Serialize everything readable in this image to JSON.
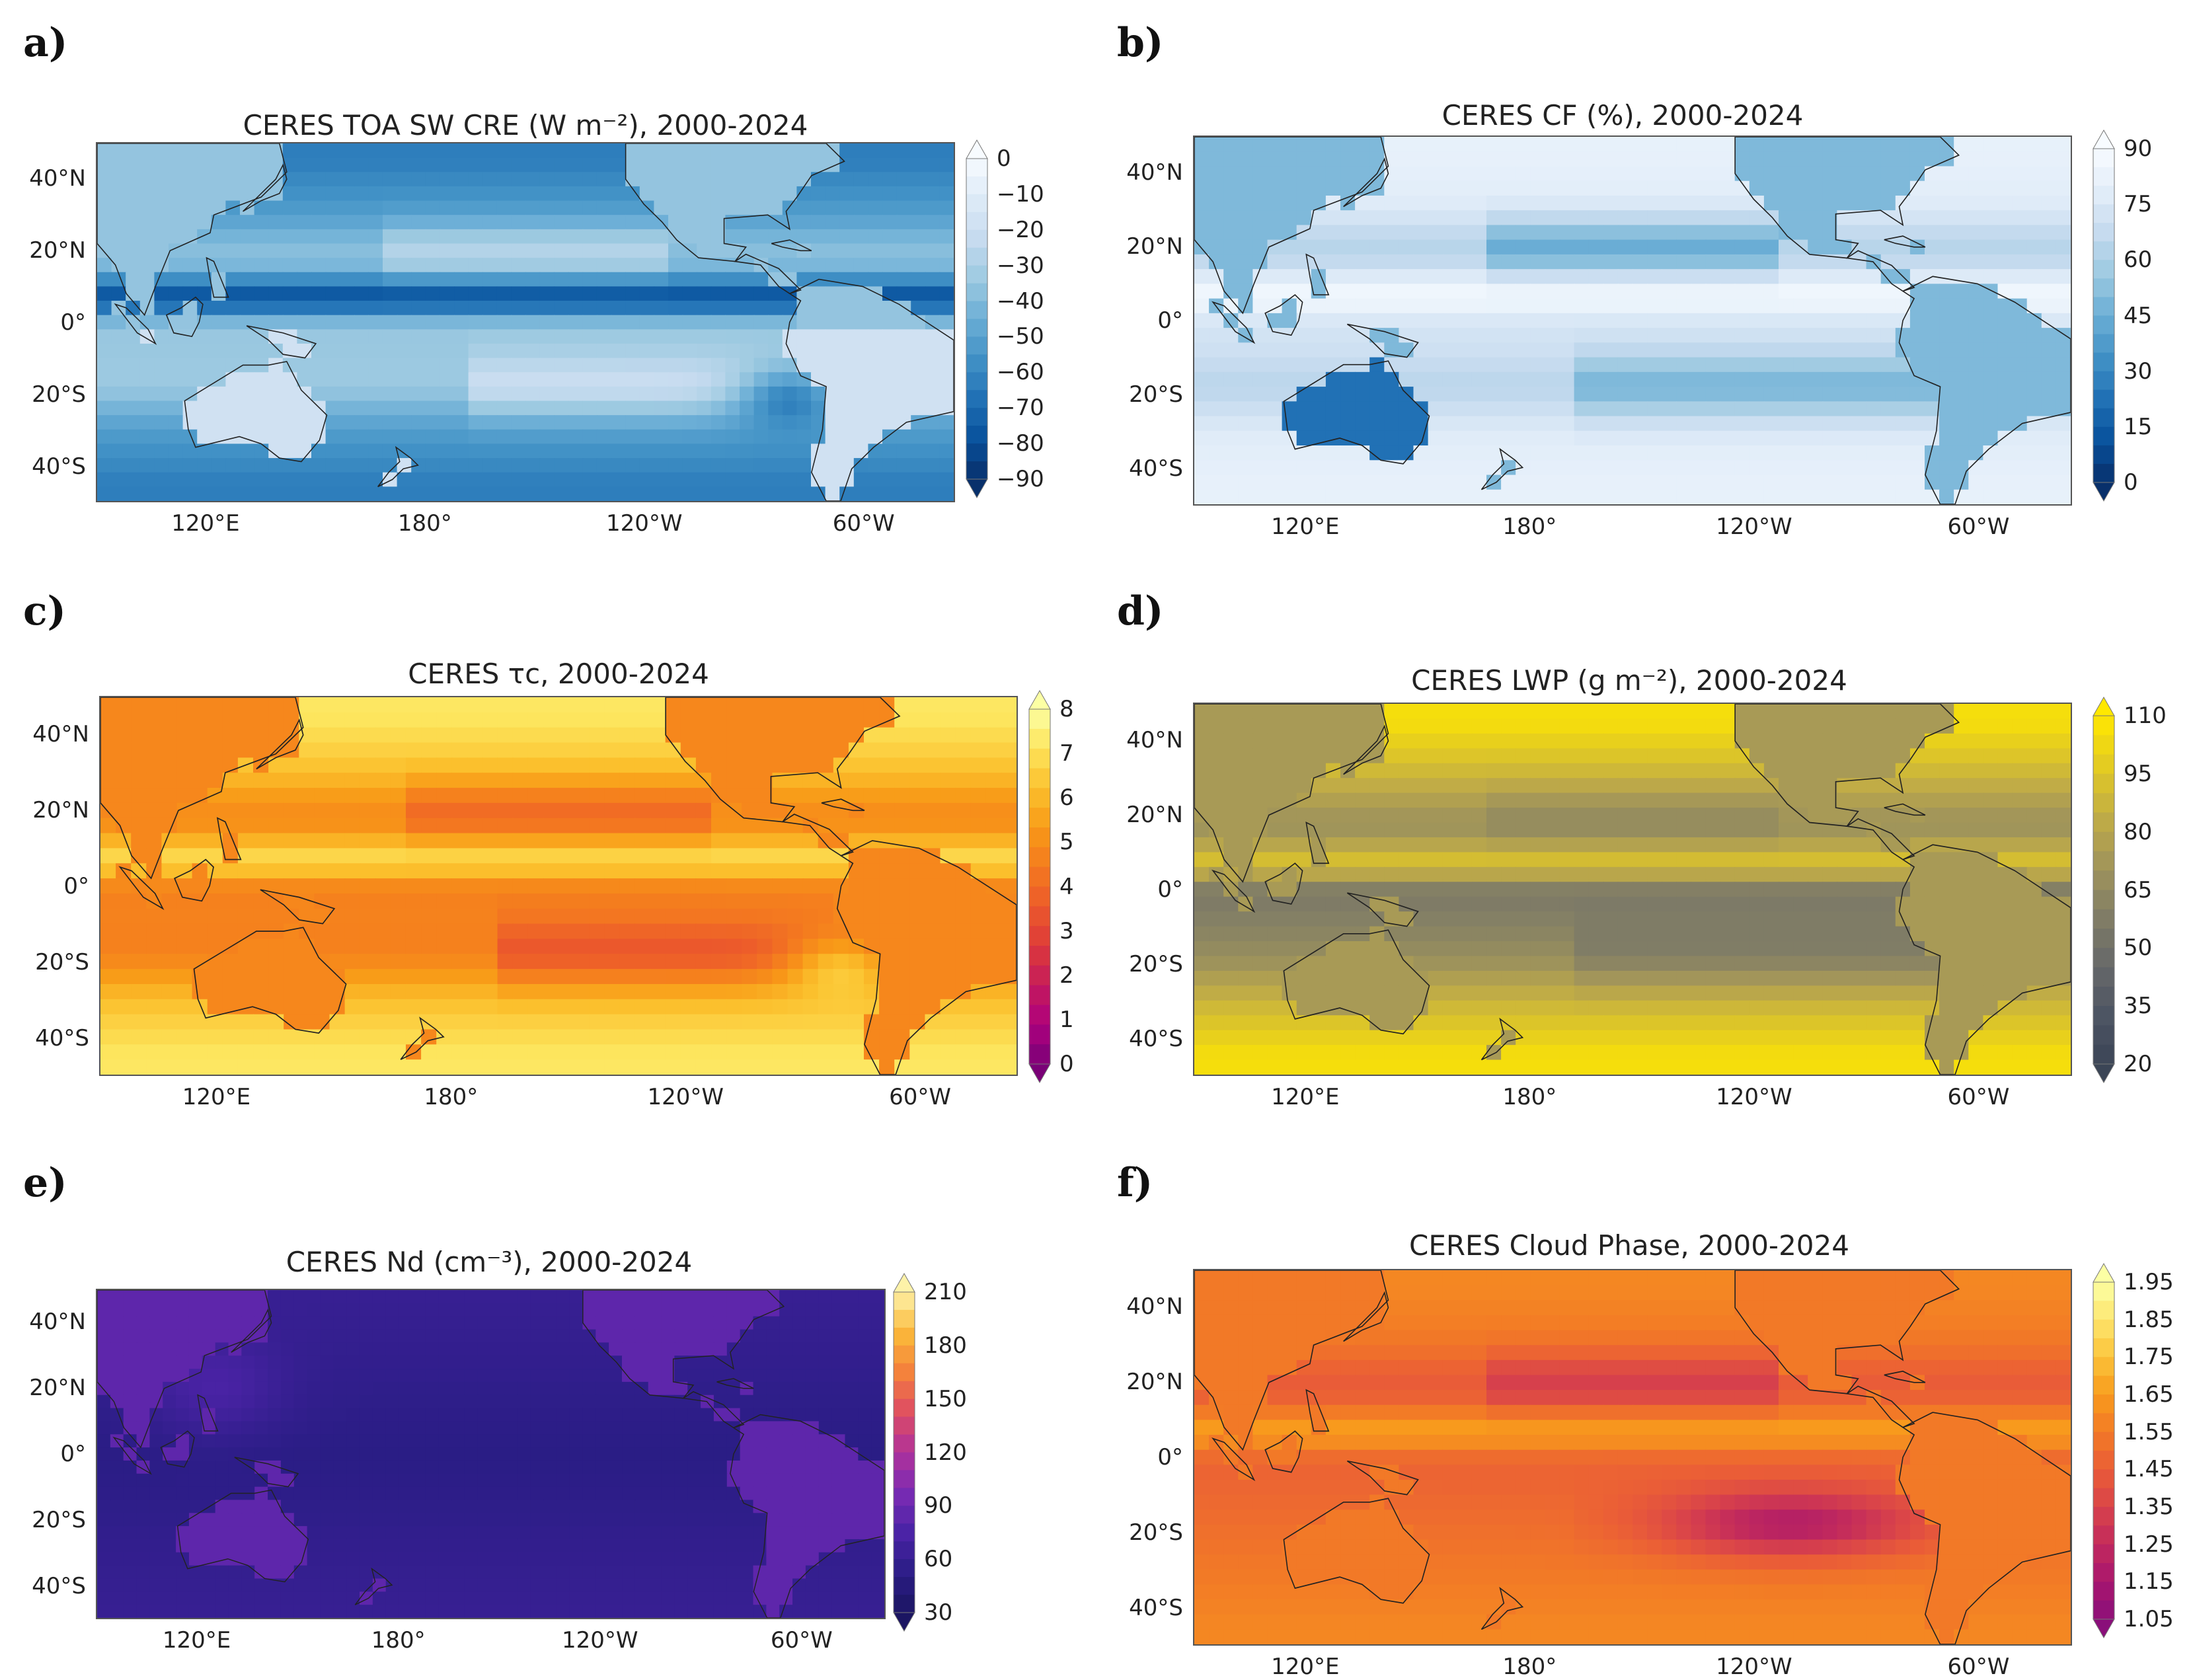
{
  "panels": [
    {
      "label": "a)",
      "title": "CERES TOA SW CRE (W m⁻²), 2000-2024",
      "ticks": [
        "0",
        "−10",
        "−20",
        "−30",
        "−40",
        "−50",
        "−60",
        "−70",
        "−80",
        "−90"
      ],
      "palette": "blues_r",
      "colors": [
        "#08306b",
        "#f7fbff"
      ]
    },
    {
      "label": "b)",
      "title": "CERES CF (%), 2000-2024",
      "ticks": [
        "90",
        "75",
        "60",
        "45",
        "30",
        "15",
        "0"
      ],
      "palette": "blues_cf",
      "colors": [
        "#08306b",
        "#f7fbff"
      ]
    },
    {
      "label": "c)",
      "title": "CERES τc, 2000-2024",
      "ticks": [
        "8",
        "7",
        "6",
        "5",
        "4",
        "3",
        "2",
        "1",
        "0"
      ],
      "palette": "inferno_like",
      "colors": [
        "#7a0177",
        "#fcffa4"
      ]
    },
    {
      "label": "d)",
      "title": "CERES LWP (g m⁻²), 2000-2024",
      "ticks": [
        "110",
        "95",
        "80",
        "65",
        "50",
        "35",
        "20"
      ],
      "palette": "cividis",
      "colors": [
        "#3b4556",
        "#ffe800"
      ]
    },
    {
      "label": "e)",
      "title": "CERES Nd (cm⁻³), 2000-2024",
      "ticks": [
        "210",
        "180",
        "150",
        "120",
        "90",
        "60",
        "30"
      ],
      "palette": "plasma_dark",
      "colors": [
        "#1b1562",
        "#fdf2a8"
      ]
    },
    {
      "label": "f)",
      "title": "CERES Cloud Phase, 2000-2024",
      "ticks": [
        "1.95",
        "1.85",
        "1.75",
        "1.65",
        "1.55",
        "1.45",
        "1.35",
        "1.25",
        "1.15",
        "1.05"
      ],
      "palette": "inferno_phase",
      "colors": [
        "#8a0f7a",
        "#fcffa4"
      ]
    }
  ],
  "axes": {
    "lat_labels": [
      "40°N",
      "20°N",
      "0°",
      "20°S",
      "40°S"
    ],
    "lon_labels": [
      "120°E",
      "180°",
      "120°W",
      "60°W"
    ]
  },
  "chart_data": [
    {
      "type": "heatmap",
      "title": "CERES TOA SW CRE (W m⁻²), 2000-2024",
      "colorbar_range": [
        -90,
        0
      ]
    },
    {
      "type": "heatmap",
      "title": "CERES CF (%), 2000-2024",
      "colorbar_range": [
        0,
        90
      ]
    },
    {
      "type": "heatmap",
      "title": "CERES τc, 2000-2024",
      "colorbar_range": [
        0,
        8
      ]
    },
    {
      "type": "heatmap",
      "title": "CERES LWP (g m⁻²), 2000-2024",
      "colorbar_range": [
        20,
        110
      ]
    },
    {
      "type": "heatmap",
      "title": "CERES Nd (cm⁻³), 2000-2024",
      "colorbar_range": [
        30,
        210
      ]
    },
    {
      "type": "heatmap",
      "title": "CERES Cloud Phase, 2000-2024",
      "colorbar_range": [
        1.05,
        1.95
      ]
    }
  ]
}
